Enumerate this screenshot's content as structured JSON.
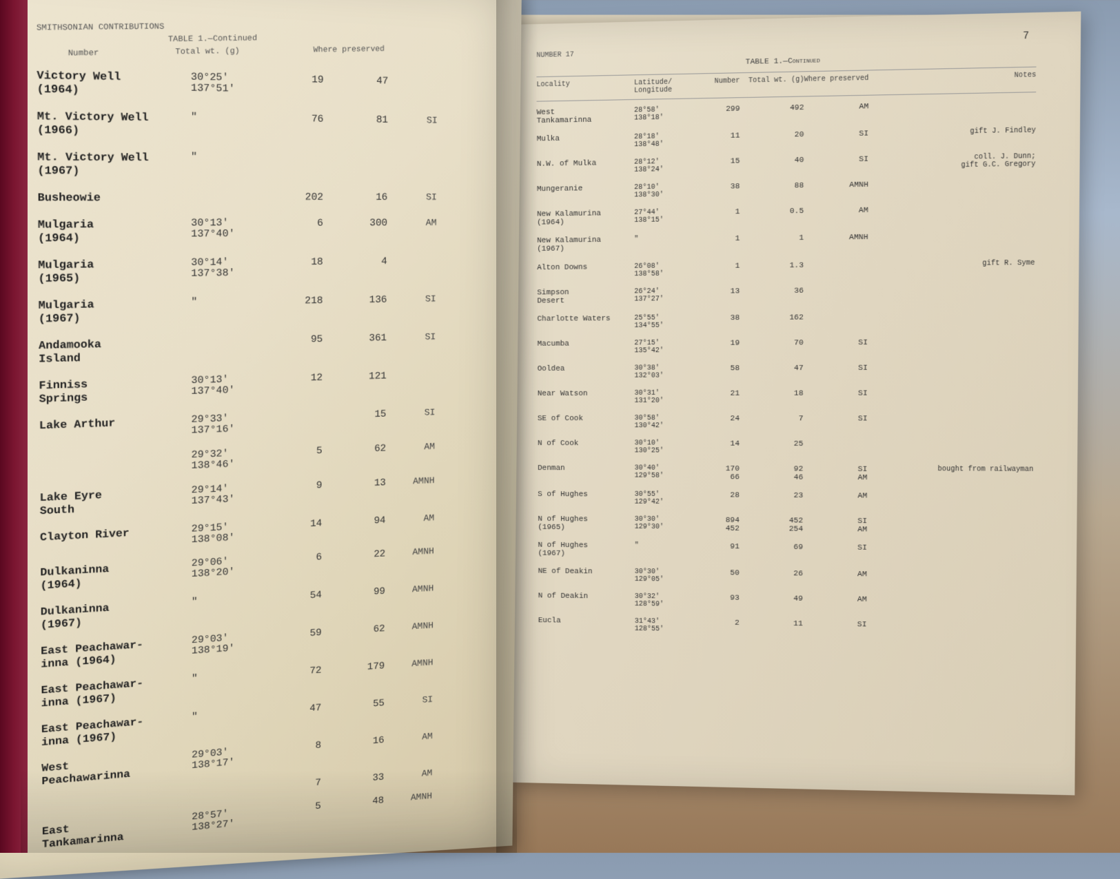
{
  "page_number": "7",
  "header_text": "SMITHSONIAN CONTRIBUTIONS",
  "table_label_left": "TABLE 1.—Continued",
  "table_label_right": "TABLE 1.—Continued",
  "number_label": "NUMBER 17",
  "columns": {
    "locality": "Locality",
    "latlon": "Latitude/\nLongitude",
    "number": "Number",
    "total_wt": "Total wt. (g)",
    "where": "Where preserved",
    "notes": "Notes"
  },
  "left_rows": [
    {
      "locality": "Victory Well",
      "sub": "(1964)",
      "coords": "30°25'\n137°51'",
      "num": "19",
      "wt": "47",
      "where": ""
    },
    {
      "locality": "Mt. Victory Well",
      "sub": "(1966)",
      "coords": "\"",
      "num": "76",
      "wt": "81",
      "where": "SI"
    },
    {
      "locality": "Mt. Victory Well",
      "sub": "(1967)",
      "coords": "\"",
      "num": "",
      "wt": "",
      "where": ""
    },
    {
      "locality": "Busheowie",
      "sub": "",
      "coords": "",
      "num": "202",
      "wt": "16",
      "where": "SI"
    },
    {
      "locality": "Mulgaria",
      "sub": "(1964)",
      "coords": "30°13'\n137°40'",
      "num": "6",
      "wt": "300",
      "where": "AM"
    },
    {
      "locality": "Mulgaria",
      "sub": "(1965)",
      "coords": "30°14'\n137°38'",
      "num": "18",
      "wt": "4",
      "where": ""
    },
    {
      "locality": "Mulgaria",
      "sub": "(1967)",
      "coords": "\"",
      "num": "218",
      "wt": "136",
      "where": "SI"
    },
    {
      "locality": "Andamooka",
      "sub": "Island",
      "coords": "",
      "num": "95",
      "wt": "361",
      "where": "SI"
    },
    {
      "locality": "Finniss",
      "sub": "Springs",
      "coords": "30°13'\n137°40'",
      "num": "12",
      "wt": "121",
      "where": ""
    },
    {
      "locality": "Lake Arthur",
      "sub": "",
      "coords": "29°33'\n137°16'",
      "num": "",
      "wt": "15",
      "where": "SI"
    },
    {
      "locality": "",
      "sub": "",
      "coords": "29°32'\n138°46'",
      "num": "5",
      "wt": "62",
      "where": "AM"
    },
    {
      "locality": "Lake Eyre",
      "sub": "South",
      "coords": "29°14'\n137°43'",
      "num": "9",
      "wt": "13",
      "where": "AMNH"
    },
    {
      "locality": "Clayton River",
      "sub": "",
      "coords": "29°15'\n138°08'",
      "num": "14",
      "wt": "94",
      "where": "AM"
    },
    {
      "locality": "Dulkaninna",
      "sub": "(1964)",
      "coords": "29°06'\n138°20'",
      "num": "6",
      "wt": "22",
      "where": "AMNH"
    },
    {
      "locality": "Dulkaninna",
      "sub": "(1967)",
      "coords": "\"",
      "num": "54",
      "wt": "99",
      "where": "AMNH"
    },
    {
      "locality": "East Peachawar-",
      "sub": "inna  (1964)",
      "coords": "29°03'\n138°19'",
      "num": "59",
      "wt": "62",
      "where": "AMNH"
    },
    {
      "locality": "East Peachawar-",
      "sub": "inna  (1967)",
      "coords": "\"",
      "num": "72",
      "wt": "179",
      "where": "AMNH"
    },
    {
      "locality": "East Peachawar-",
      "sub": "inna  (1967)",
      "coords": "\"",
      "num": "47",
      "wt": "55",
      "where": "SI"
    },
    {
      "locality": "West",
      "sub": "Peachawarinna",
      "coords": "29°03'\n138°17'",
      "num": "8",
      "wt": "16",
      "where": "AM"
    },
    {
      "locality": "",
      "sub": "",
      "coords": "",
      "num": "7",
      "wt": "33",
      "where": "AM"
    },
    {
      "locality": "East",
      "sub": "Tankamarinna",
      "coords": "28°57'\n138°27'",
      "num": "5",
      "wt": "48",
      "where": "AMNH"
    }
  ],
  "right_rows": [
    {
      "locality": "West\nTankamarinna",
      "coords": "28°58'\n138°18'",
      "num": "299",
      "wt": "492",
      "where": "AM",
      "notes": ""
    },
    {
      "locality": "Mulka",
      "coords": "28°18'\n138°48'",
      "num": "11",
      "wt": "20",
      "where": "SI",
      "notes": "gift J. Findley"
    },
    {
      "locality": "N.W. of Mulka",
      "coords": "28°12'\n138°24'",
      "num": "15",
      "wt": "40",
      "where": "SI",
      "notes": "coll. J. Dunn;\ngift G.C. Gregory"
    },
    {
      "locality": "Mungeranie",
      "coords": "28°10'\n138°30'",
      "num": "38",
      "wt": "88",
      "where": "AMNH",
      "notes": ""
    },
    {
      "locality": "New Kalamurina\n(1964)",
      "coords": "27°44'\n138°15'",
      "num": "1",
      "wt": "0.5",
      "where": "AM",
      "notes": ""
    },
    {
      "locality": "New Kalamurina\n(1967)",
      "coords": "\"",
      "num": "1",
      "wt": "1",
      "where": "AMNH",
      "notes": ""
    },
    {
      "locality": "Alton Downs",
      "coords": "26°08'\n138°58'",
      "num": "1",
      "wt": "1.3",
      "where": "",
      "notes": "gift R. Syme"
    },
    {
      "locality": "Simpson\nDesert",
      "coords": "26°24'\n137°27'",
      "num": "13",
      "wt": "36",
      "where": "",
      "notes": ""
    },
    {
      "locality": "Charlotte Waters",
      "coords": "25°55'\n134°55'",
      "num": "38",
      "wt": "162",
      "where": "",
      "notes": ""
    },
    {
      "locality": "Macumba",
      "coords": "27°15'\n135°42'",
      "num": "19",
      "wt": "70",
      "where": "SI",
      "notes": ""
    },
    {
      "locality": "Ooldea",
      "coords": "30°38'\n132°03'",
      "num": "58",
      "wt": "47",
      "where": "SI",
      "notes": ""
    },
    {
      "locality": "Near Watson",
      "coords": "30°31'\n131°20'",
      "num": "21",
      "wt": "18",
      "where": "SI",
      "notes": ""
    },
    {
      "locality": "SE of Cook",
      "coords": "30°58'\n130°42'",
      "num": "24",
      "wt": "7",
      "where": "SI",
      "notes": ""
    },
    {
      "locality": "N of Cook",
      "coords": "30°10'\n130°25'",
      "num": "14",
      "wt": "25",
      "where": "",
      "notes": ""
    },
    {
      "locality": "Denman",
      "coords": "30°40'\n129°58'",
      "num": "170\n66",
      "wt": "92\n46",
      "where": "SI\nAM",
      "notes": "bought from railwayman"
    },
    {
      "locality": "S of Hughes",
      "coords": "30°55'\n129°42'",
      "num": "28",
      "wt": "23",
      "where": "AM",
      "notes": ""
    },
    {
      "locality": "N of Hughes\n(1965)",
      "coords": "30°30'\n129°30'",
      "num": "894\n452",
      "wt": "452\n254",
      "where": "SI\nAM",
      "notes": ""
    },
    {
      "locality": "N of Hughes\n(1967)",
      "coords": "\"",
      "num": "91",
      "wt": "69",
      "where": "SI",
      "notes": ""
    },
    {
      "locality": "NE of Deakin",
      "coords": "30°30'\n129°05'",
      "num": "50",
      "wt": "26",
      "where": "AM",
      "notes": ""
    },
    {
      "locality": "N of Deakin",
      "coords": "30°32'\n128°59'",
      "num": "93",
      "wt": "49",
      "where": "AM",
      "notes": ""
    },
    {
      "locality": "Eucla",
      "coords": "31°43'\n128°55'",
      "num": "2",
      "wt": "11",
      "where": "SI",
      "notes": ""
    }
  ],
  "colors": {
    "paper": "#e5dcc5",
    "text": "#333333",
    "spine": "#5a0820"
  }
}
